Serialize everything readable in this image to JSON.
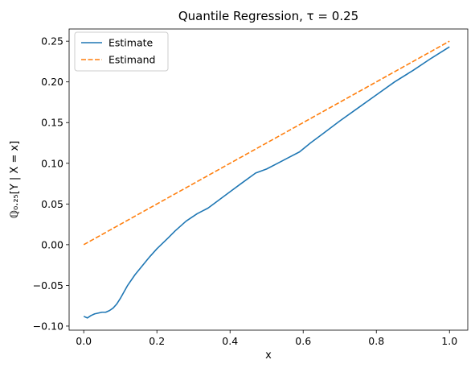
{
  "chart_data": {
    "type": "line",
    "title": "Quantile Regression, τ = 0.25",
    "xlabel": "x",
    "ylabel": "ℚ₀.₂₅[Y | X = x]",
    "xlim": [
      -0.04,
      1.05
    ],
    "ylim": [
      -0.105,
      0.265
    ],
    "xticks": [
      0.0,
      0.2,
      0.4,
      0.6,
      0.8,
      1.0
    ],
    "xtick_labels": [
      "0.0",
      "0.2",
      "0.4",
      "0.6",
      "0.8",
      "1.0"
    ],
    "yticks": [
      -0.1,
      -0.05,
      0.0,
      0.05,
      0.1,
      0.15,
      0.2,
      0.25
    ],
    "ytick_labels": [
      "−0.10",
      "−0.05",
      "0.00",
      "0.05",
      "0.10",
      "0.15",
      "0.20",
      "0.25"
    ],
    "grid": false,
    "legend_position": "top-left",
    "series": [
      {
        "name": "Estimate",
        "color": "#1f77b4",
        "style": "solid",
        "x": [
          0.0,
          0.01,
          0.02,
          0.03,
          0.04,
          0.05,
          0.06,
          0.07,
          0.08,
          0.09,
          0.1,
          0.12,
          0.14,
          0.16,
          0.18,
          0.2,
          0.23,
          0.25,
          0.28,
          0.31,
          0.34,
          0.37,
          0.4,
          0.43,
          0.47,
          0.5,
          0.53,
          0.56,
          0.59,
          0.62,
          0.65,
          0.7,
          0.75,
          0.8,
          0.85,
          0.9,
          0.95,
          1.0
        ],
        "y": [
          -0.088,
          -0.09,
          -0.087,
          -0.085,
          -0.084,
          -0.083,
          -0.083,
          -0.081,
          -0.078,
          -0.073,
          -0.066,
          -0.05,
          -0.037,
          -0.026,
          -0.015,
          -0.005,
          0.008,
          0.017,
          0.029,
          0.038,
          0.045,
          0.055,
          0.065,
          0.075,
          0.088,
          0.093,
          0.1,
          0.107,
          0.114,
          0.125,
          0.135,
          0.152,
          0.168,
          0.184,
          0.2,
          0.214,
          0.229,
          0.243
        ]
      },
      {
        "name": "Estimand",
        "color": "#ff7f0e",
        "style": "dashed",
        "x": [
          0.0,
          1.0
        ],
        "y": [
          0.0,
          0.25
        ]
      }
    ]
  }
}
